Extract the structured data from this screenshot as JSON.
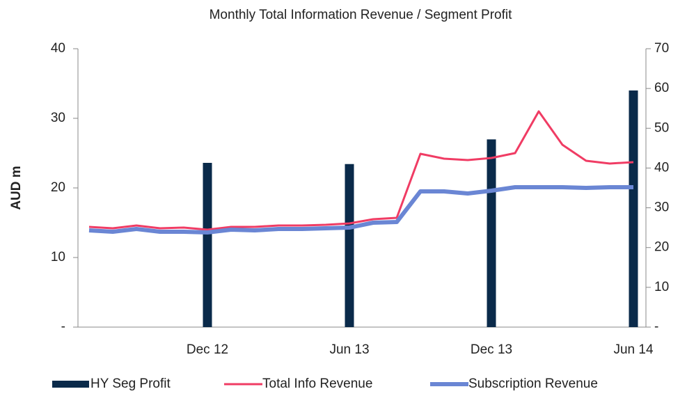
{
  "chart_data": {
    "type": "combo",
    "title": "Monthly Total Information Revenue / Segment Profit",
    "y_label": "AUD m",
    "categories": [
      null,
      null,
      null,
      null,
      null,
      "Dec 12",
      null,
      null,
      null,
      null,
      null,
      "Jun 13",
      null,
      null,
      null,
      null,
      null,
      "Dec 13",
      null,
      null,
      null,
      null,
      null,
      "Jun 14"
    ],
    "ylim": [
      0,
      40
    ],
    "yticks": [
      {
        "value": 0,
        "label": "-"
      },
      10,
      20,
      30,
      40
    ],
    "y2lim": [
      0,
      70
    ],
    "y2ticks": [
      {
        "value": 0,
        "label": "-"
      },
      10,
      20,
      30,
      40,
      50,
      60,
      70
    ],
    "series": [
      {
        "name": "HY Seg Profit",
        "type": "bar",
        "axis": "y2",
        "color": "#0a2a4a",
        "values": [
          null,
          null,
          null,
          null,
          null,
          41.3,
          null,
          null,
          null,
          null,
          null,
          41.0,
          null,
          null,
          null,
          null,
          null,
          47.2,
          null,
          null,
          null,
          null,
          null,
          59.5
        ]
      },
      {
        "name": "Total Info Revenue",
        "type": "line",
        "color": "#f03c64",
        "values": [
          14.4,
          14.2,
          14.6,
          14.2,
          14.3,
          14.0,
          14.4,
          14.4,
          14.6,
          14.6,
          14.7,
          14.9,
          15.5,
          15.7,
          24.9,
          24.2,
          24.0,
          24.3,
          25.0,
          31.0,
          26.2,
          23.9,
          23.5,
          23.7
        ]
      },
      {
        "name": "Subscription Revenue",
        "type": "line",
        "color": "#6a86d4",
        "values": [
          13.9,
          13.7,
          14.1,
          13.7,
          13.7,
          13.6,
          14.0,
          13.9,
          14.1,
          14.1,
          14.2,
          14.3,
          15.0,
          15.1,
          19.5,
          19.5,
          19.2,
          19.6,
          20.1,
          20.1,
          20.1,
          20.0,
          20.1,
          20.1
        ]
      }
    ]
  }
}
